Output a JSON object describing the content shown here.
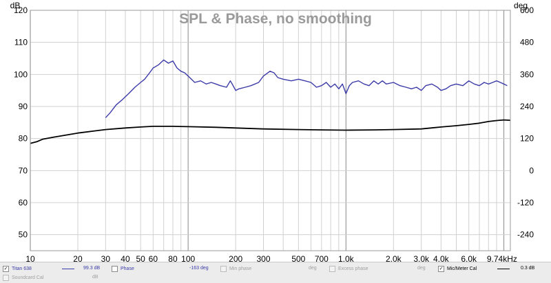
{
  "chart_data": {
    "type": "line",
    "title": "SPL & Phase, no smoothing",
    "left_unit": "dB",
    "right_unit": "deg",
    "x_scale": "log",
    "xlim": [
      10,
      11000
    ],
    "ylim_left": [
      45,
      120
    ],
    "ylim_right": [
      -300,
      600
    ],
    "x_ticks": [
      {
        "value": 10,
        "label": "10"
      },
      {
        "value": 20,
        "label": "20"
      },
      {
        "value": 30,
        "label": "30"
      },
      {
        "value": 40,
        "label": "40"
      },
      {
        "value": 50,
        "label": "50"
      },
      {
        "value": 60,
        "label": "60"
      },
      {
        "value": 80,
        "label": "80"
      },
      {
        "value": 100,
        "label": "100"
      },
      {
        "value": 200,
        "label": "200"
      },
      {
        "value": 300,
        "label": "300"
      },
      {
        "value": 500,
        "label": "500"
      },
      {
        "value": 700,
        "label": "700"
      },
      {
        "value": 1000,
        "label": "1.0k"
      },
      {
        "value": 2000,
        "label": "2.0k"
      },
      {
        "value": 3000,
        "label": "3.0k"
      },
      {
        "value": 4000,
        "label": "4.0k"
      },
      {
        "value": 6000,
        "label": "6.0k"
      },
      {
        "value": 9740,
        "label": "9.74kHz"
      }
    ],
    "y_ticks_left": [
      50,
      60,
      70,
      80,
      90,
      100,
      110,
      120
    ],
    "y_ticks_right": [
      -240,
      -120,
      0,
      120,
      240,
      360,
      480,
      600
    ],
    "series": [
      {
        "name": "Titan 638",
        "color": "#3a3aa8",
        "axis": "left",
        "x": [
          30,
          32,
          35,
          38,
          42,
          46,
          50,
          53,
          57,
          60,
          65,
          70,
          75,
          80,
          85,
          90,
          95,
          100,
          110,
          120,
          130,
          140,
          150,
          160,
          175,
          185,
          190,
          200,
          210,
          230,
          250,
          280,
          300,
          330,
          350,
          370,
          400,
          450,
          500,
          550,
          600,
          650,
          700,
          750,
          800,
          850,
          900,
          950,
          1000,
          1050,
          1100,
          1200,
          1300,
          1400,
          1500,
          1600,
          1700,
          1800,
          2000,
          2200,
          2400,
          2600,
          2800,
          3000,
          3200,
          3500,
          3800,
          4000,
          4300,
          4600,
          5000,
          5500,
          6000,
          6500,
          7000,
          7500,
          8000,
          8500,
          9000,
          9500,
          10000,
          10500
        ],
        "y": [
          86.5,
          88.0,
          90.5,
          92.0,
          94.0,
          96.0,
          97.5,
          98.5,
          100.5,
          102.0,
          103.0,
          104.5,
          103.5,
          104.2,
          102.0,
          101.0,
          100.5,
          99.5,
          97.5,
          98.0,
          97.0,
          97.5,
          97.0,
          96.5,
          96.0,
          98.0,
          97.0,
          95.0,
          95.5,
          96.0,
          96.5,
          97.5,
          99.5,
          101.0,
          100.5,
          99.0,
          98.5,
          98.0,
          98.5,
          98.0,
          97.5,
          96.0,
          96.5,
          97.5,
          96.0,
          97.0,
          95.5,
          97.0,
          94.0,
          96.5,
          97.5,
          98.0,
          97.0,
          96.5,
          98.0,
          97.0,
          98.0,
          97.0,
          97.5,
          96.5,
          96.0,
          95.5,
          96.0,
          95.0,
          96.5,
          97.0,
          96.0,
          95.0,
          95.5,
          96.5,
          97.0,
          96.5,
          98.0,
          97.0,
          96.5,
          97.5,
          97.0,
          97.5,
          98.0,
          97.5,
          97.0,
          96.5
        ]
      },
      {
        "name": "Mic/Meter Cal",
        "color": "#000000",
        "axis": "left",
        "x": [
          10,
          11,
          12,
          14,
          16,
          20,
          25,
          30,
          40,
          50,
          60,
          80,
          100,
          150,
          200,
          300,
          500,
          700,
          1000,
          1500,
          2000,
          3000,
          4000,
          5000,
          6000,
          7000,
          8000,
          9000,
          10000,
          11000
        ],
        "y": [
          78.5,
          79.0,
          79.8,
          80.4,
          80.9,
          81.7,
          82.3,
          82.8,
          83.3,
          83.6,
          83.8,
          83.8,
          83.7,
          83.5,
          83.3,
          83.0,
          82.8,
          82.7,
          82.6,
          82.7,
          82.8,
          83.0,
          83.6,
          84.0,
          84.4,
          84.8,
          85.3,
          85.6,
          85.8,
          85.7
        ]
      }
    ]
  },
  "legend": {
    "row1": [
      {
        "label": "Titan 638",
        "checked": true,
        "value": "99.3 dB",
        "line_color": "#3a3aa8"
      },
      {
        "label": "Phase",
        "checked": false,
        "value": "-163 deg"
      },
      {
        "label": "Min phase",
        "checked": false,
        "unit": "deg"
      },
      {
        "label": "Excess phase",
        "checked": false,
        "unit": "deg"
      },
      {
        "label": "Mic/Meter Cal",
        "checked": true,
        "value": "0.3 dB",
        "line_color": "#000000"
      }
    ],
    "row2": [
      {
        "label": "Soundcard Cal",
        "checked": false,
        "unit": "dB"
      }
    ]
  }
}
